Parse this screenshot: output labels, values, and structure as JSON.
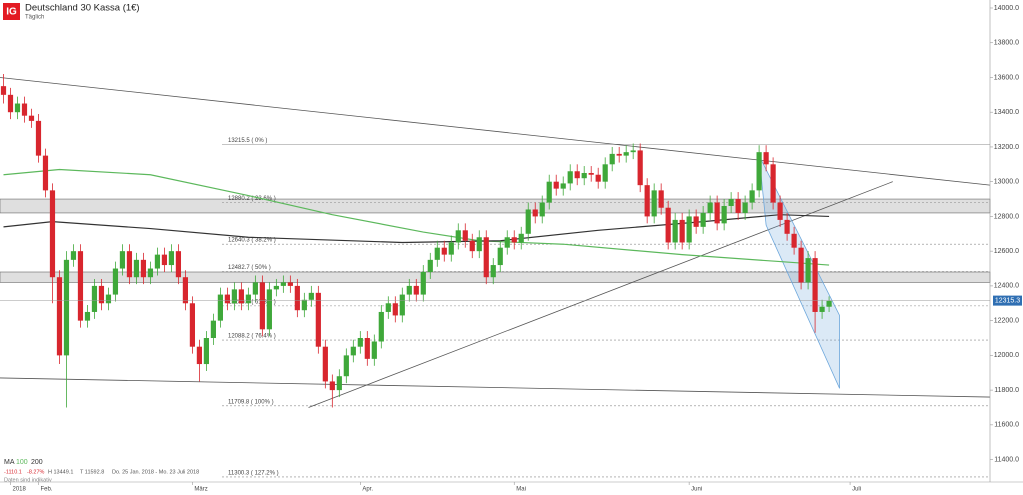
{
  "chart_data": {
    "type": "candlestick",
    "logo": "IG",
    "title": "Deutschland 30 Kassa (1€)",
    "subtitle": "Täglich",
    "xlim": [
      -0.5,
      141
    ],
    "xticks": [
      {
        "value": 1,
        "label": "2018"
      },
      {
        "value": 5,
        "label": "Feb."
      },
      {
        "value": 27,
        "label": "März"
      },
      {
        "value": 51,
        "label": "Apr."
      },
      {
        "value": 73,
        "label": "Mai"
      },
      {
        "value": 98,
        "label": "Juni"
      },
      {
        "value": 121,
        "label": "Juli"
      }
    ],
    "ylim": [
      11271,
      14046
    ],
    "yticks": [
      {
        "value": 11400,
        "label": "11400.0"
      },
      {
        "value": 11600,
        "label": "11600.0"
      },
      {
        "value": 11800,
        "label": "11800.0"
      },
      {
        "value": 12000,
        "label": "12000.0"
      },
      {
        "value": 12200,
        "label": "12200.0"
      },
      {
        "value": 12400,
        "label": "12400.0"
      },
      {
        "value": 12600,
        "label": "12600.0"
      },
      {
        "value": 12800,
        "label": "12800.0"
      },
      {
        "value": 13000,
        "label": "13000.0"
      },
      {
        "value": 13200,
        "label": "13200.0"
      },
      {
        "value": 13400,
        "label": "13400.0"
      },
      {
        "value": 13600,
        "label": "13600.0"
      },
      {
        "value": 13800,
        "label": "13800.0"
      },
      {
        "value": 14000,
        "label": "14000.0"
      }
    ],
    "up_color": "#3fa83a",
    "down_color": "#d8262e",
    "candles": {
      "open": [
        13550,
        13500,
        13400,
        13450,
        13380,
        13350,
        13150,
        12950,
        12450,
        12000,
        12550,
        12600,
        12200,
        12250,
        12400,
        12300,
        12350,
        12500,
        12600,
        12450,
        12550,
        12450,
        12500,
        12580,
        12520,
        12600,
        12450,
        12300,
        12050,
        11950,
        12100,
        12200,
        12350,
        12300,
        12380,
        12300,
        12350,
        12420,
        12150,
        12380,
        12400,
        12420,
        12400,
        12260,
        12320,
        12360,
        12050,
        11850,
        11800,
        11880,
        12000,
        12050,
        12100,
        11980,
        12080,
        12250,
        12300,
        12230,
        12350,
        12400,
        12350,
        12480,
        12550,
        12620,
        12580,
        12650,
        12720,
        12660,
        12600,
        12680,
        12450,
        12520,
        12620,
        12680,
        12650,
        12700,
        12840,
        12800,
        12880,
        13000,
        12960,
        12990,
        13060,
        13020,
        13050,
        13040,
        13000,
        13100,
        13160,
        13150,
        13170,
        13180,
        12980,
        12800,
        12950,
        12850,
        12650,
        12780,
        12650,
        12800,
        12740,
        12820,
        12880,
        12760,
        12860,
        12900,
        12820,
        12880,
        12950,
        13170,
        13100,
        12880,
        12780,
        12700,
        12620,
        12420,
        12560,
        12250,
        12280
      ],
      "high": [
        13620,
        13540,
        13490,
        13490,
        13420,
        13390,
        13190,
        12990,
        12490,
        12600,
        12640,
        12640,
        12290,
        12440,
        12440,
        12390,
        12540,
        12640,
        12640,
        12590,
        12590,
        12540,
        12620,
        12620,
        12640,
        12640,
        12490,
        12340,
        12090,
        12140,
        12240,
        12390,
        12390,
        12420,
        12420,
        12390,
        12460,
        12460,
        12420,
        12440,
        12460,
        12460,
        12440,
        12360,
        12400,
        12400,
        12090,
        11890,
        11920,
        12040,
        12090,
        12140,
        12140,
        12120,
        12290,
        12340,
        12340,
        12390,
        12440,
        12440,
        12520,
        12590,
        12660,
        12660,
        12690,
        12760,
        12760,
        12700,
        12720,
        12720,
        12560,
        12660,
        12720,
        12720,
        12740,
        12880,
        12880,
        12920,
        13040,
        13040,
        13030,
        13100,
        13100,
        13090,
        13090,
        13080,
        13140,
        13200,
        13200,
        13210,
        13220,
        13220,
        13020,
        12990,
        12990,
        12890,
        12820,
        12820,
        12840,
        12840,
        12860,
        12920,
        12920,
        12900,
        12940,
        12940,
        12920,
        12990,
        13210,
        13210,
        13140,
        12920,
        12820,
        12740,
        12660,
        12600,
        12600,
        12320,
        12340
      ],
      "low": [
        13450,
        13360,
        13360,
        13340,
        13310,
        13110,
        12910,
        12300,
        11950,
        11700,
        12510,
        12160,
        12160,
        12210,
        12260,
        12260,
        12310,
        12460,
        12410,
        12410,
        12410,
        12410,
        12460,
        12480,
        12480,
        12410,
        12260,
        12010,
        11850,
        11910,
        12060,
        12160,
        12260,
        12260,
        12260,
        12260,
        12310,
        12110,
        12110,
        12340,
        12360,
        12360,
        12220,
        12220,
        12280,
        12010,
        11810,
        11700,
        11760,
        11840,
        11960,
        12010,
        11940,
        11940,
        12040,
        12210,
        12190,
        12190,
        12310,
        12310,
        12310,
        12440,
        12510,
        12540,
        12540,
        12610,
        12620,
        12560,
        12560,
        12410,
        12410,
        12480,
        12580,
        12610,
        12610,
        12660,
        12760,
        12760,
        12840,
        12920,
        12920,
        12950,
        12980,
        12980,
        13000,
        12960,
        12960,
        13060,
        13110,
        13110,
        13130,
        12940,
        12760,
        12760,
        12810,
        12610,
        12610,
        12610,
        12610,
        12700,
        12700,
        12780,
        12720,
        12720,
        12820,
        12780,
        12780,
        12840,
        12910,
        13060,
        12840,
        12740,
        12660,
        12580,
        12380,
        12380,
        12130,
        12210,
        12250
      ],
      "close": [
        13500,
        13400,
        13450,
        13380,
        13350,
        13150,
        12950,
        12450,
        12000,
        12550,
        12600,
        12200,
        12250,
        12400,
        12300,
        12350,
        12500,
        12600,
        12450,
        12550,
        12450,
        12500,
        12580,
        12520,
        12600,
        12450,
        12300,
        12050,
        11950,
        12100,
        12200,
        12350,
        12300,
        12380,
        12300,
        12350,
        12420,
        12150,
        12380,
        12400,
        12420,
        12400,
        12260,
        12320,
        12360,
        12050,
        11850,
        11800,
        11880,
        12000,
        12050,
        12100,
        11980,
        12080,
        12250,
        12300,
        12230,
        12350,
        12400,
        12350,
        12480,
        12550,
        12620,
        12580,
        12650,
        12720,
        12660,
        12600,
        12680,
        12450,
        12520,
        12620,
        12680,
        12650,
        12700,
        12840,
        12800,
        12880,
        13000,
        12960,
        12990,
        13060,
        13020,
        13050,
        13040,
        13000,
        13100,
        13160,
        13150,
        13170,
        13180,
        12980,
        12800,
        12950,
        12850,
        12650,
        12780,
        12650,
        12800,
        12740,
        12820,
        12880,
        12760,
        12860,
        12900,
        12820,
        12880,
        12950,
        13170,
        13100,
        12880,
        12780,
        12700,
        12620,
        12420,
        12560,
        12250,
        12280,
        12315
      ]
    },
    "moving_averages": {
      "label": "MA",
      "lines": [
        {
          "name": "100",
          "color": "#5cb85c",
          "x": [
            0,
            8,
            21,
            35,
            47,
            60,
            68,
            80,
            97,
            111,
            118
          ],
          "values": [
            13040,
            13070,
            13040,
            12920,
            12810,
            12710,
            12660,
            12640,
            12580,
            12540,
            12520
          ]
        },
        {
          "name": "200",
          "color": "#333333",
          "x": [
            0,
            7,
            21,
            35,
            57,
            71,
            85,
            100,
            111,
            118
          ],
          "values": [
            12740,
            12770,
            12730,
            12680,
            12650,
            12660,
            12720,
            12770,
            12810,
            12800
          ]
        }
      ]
    },
    "zones": [
      [
        12820,
        12900
      ],
      [
        12420,
        12480
      ]
    ],
    "fib_levels": [
      {
        "value": 13215.5,
        "label": "13215.5 ( 0% )"
      },
      {
        "value": 12880.2,
        "label": "12880.2 ( 23.6% )"
      },
      {
        "value": 12640.3,
        "label": "12640.3 ( 38.2% )"
      },
      {
        "value": 12482.7,
        "label": "12482.7 ( 50% )"
      },
      {
        "value": 12285.0,
        "label": "12285.0 ( 61.8% )"
      },
      {
        "value": 12088.2,
        "label": "12088.2 ( 76.4% )"
      },
      {
        "value": 11709.8,
        "label": "11709.8 ( 100% )"
      },
      {
        "value": 11300.3,
        "label": "11300.3 ( 127.2% )"
      }
    ],
    "trend_lines": [
      {
        "x": [
          -0.5,
          141
        ],
        "values": [
          13600,
          12980
        ]
      },
      {
        "x": [
          -0.5,
          141
        ],
        "values": [
          11870,
          11760
        ]
      },
      {
        "x": [
          43.6,
          127.1
        ],
        "values": [
          11700,
          13000
        ]
      }
    ],
    "channel": {
      "color": "#6fa8dc",
      "x": [
        108,
        119.5,
        119.5,
        109
      ],
      "values": [
        13150,
        12230,
        11810,
        12750
      ]
    },
    "last_price": 12315.3,
    "stats": [
      "-1110.1",
      "-8.27%",
      "H 13449.1",
      "T 11592.8",
      "Do. 25 Jan. 2018 - Mo. 23 Juli 2018"
    ],
    "footnote": "Daten sind indikativ"
  }
}
